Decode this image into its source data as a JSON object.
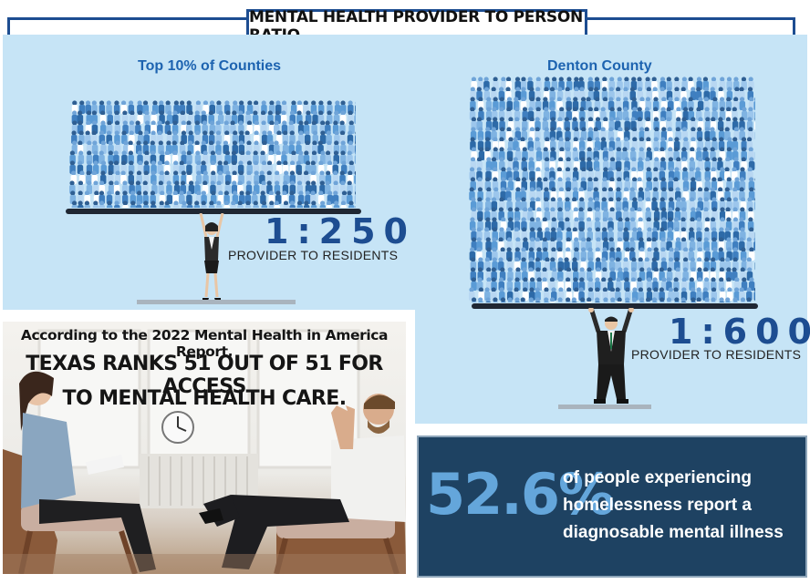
{
  "title": "MENTAL HEALTH PROVIDER TO PERSON RATIO",
  "left_panel": {
    "heading": "Top 10% of Counties",
    "ratio": "1:250",
    "caption": "PROVIDER TO RESIDENTS"
  },
  "right_panel": {
    "heading": "Denton County",
    "ratio": "1:600",
    "caption": "PROVIDER TO RESIDENTS"
  },
  "report": {
    "line1": "According to the 2022 Mental Health in America Report,",
    "line2": "TEXAS RANKS 51 OUT OF 51 FOR ACCESS",
    "line3": "TO MENTAL HEALTH CARE."
  },
  "stat": {
    "number": "52.6%",
    "text_line1": "of people experiencing",
    "text_line2": "homelessness report a",
    "text_line3": "diagnosable mental illness"
  },
  "colors": {
    "brand_blue": "#1d4d91",
    "panel_bg": "#c6e4f6",
    "heading_blue": "#1d63b0",
    "stat_bg": "#1e4262",
    "stat_number": "#64a6db"
  }
}
